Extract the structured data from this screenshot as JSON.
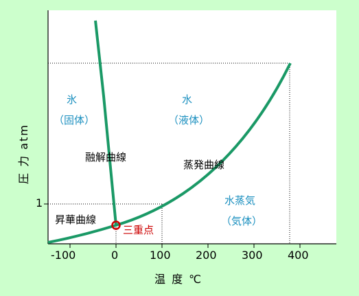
{
  "axes": {
    "ylabel": "圧 力 atm",
    "xlabel": "温 度 ℃",
    "x_ticks": [
      "-100",
      "0",
      "100",
      "200",
      "300",
      "400"
    ],
    "y_tick": "1"
  },
  "regions": {
    "solid": {
      "name": "氷",
      "state": "（固体）"
    },
    "liquid": {
      "name": "水",
      "state": "（液体）"
    },
    "gas": {
      "name": "水蒸気",
      "state": "（気体）"
    }
  },
  "curves": {
    "melting": "融解曲線",
    "vaporization": "蒸発曲線",
    "sublimation": "昇華曲線"
  },
  "triple_point": "三重点",
  "colors": {
    "background": "#ccffcc",
    "plot_area": "#ffffff",
    "curve": "#1a9966",
    "region_text": "#1a8fbf",
    "triple_point": "#cc0000"
  }
}
